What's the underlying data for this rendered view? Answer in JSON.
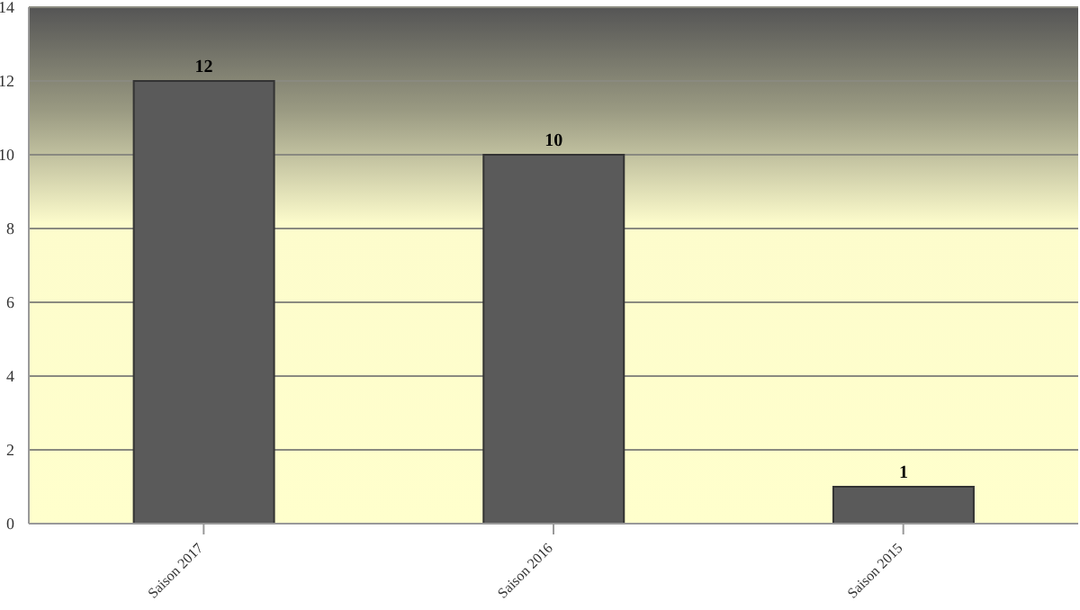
{
  "chart_data": {
    "type": "bar",
    "categories": [
      "Saison 2017",
      "Saison 2016",
      "Saison 2015"
    ],
    "values": [
      12,
      10,
      1
    ],
    "color": "#5a5a5a",
    "ylim": [
      0,
      14
    ],
    "yticks": [
      0,
      2,
      4,
      6,
      8,
      10,
      12,
      14
    ],
    "grid": "y",
    "data_labels": true
  }
}
